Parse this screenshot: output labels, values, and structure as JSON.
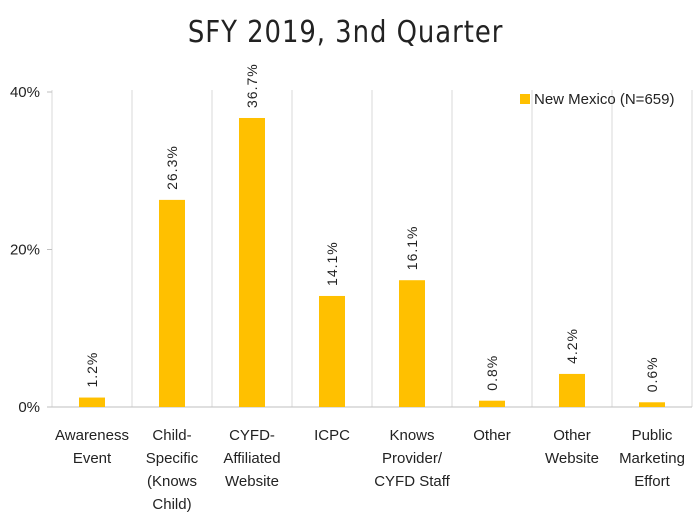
{
  "chart_data": {
    "type": "bar",
    "title": "SFY 2019, 3nd Quarter",
    "categories": [
      "Awareness\nEvent",
      "Child-\nSpecific\n(Knows\nChild)",
      "CYFD-\nAffiliated\nWebsite",
      "ICPC",
      "Knows\nProvider/\nCYFD Staff",
      "Other",
      "Other\nWebsite",
      "Public\nMarketing\nEffort"
    ],
    "series": [
      {
        "name": "New Mexico (N=659)",
        "color": "#ffc000",
        "values": [
          1.2,
          26.3,
          36.7,
          14.1,
          16.1,
          0.8,
          4.2,
          0.6
        ],
        "value_labels": [
          "1.2%",
          "26.3%",
          "36.7%",
          "14.1%",
          "16.1%",
          "0.8%",
          "4.2%",
          "0.6%"
        ]
      }
    ],
    "ylim": [
      0,
      40
    ],
    "yticks": [
      {
        "value": 0,
        "label": "0%"
      },
      {
        "value": 20,
        "label": "20%"
      },
      {
        "value": 40,
        "label": "40%"
      }
    ],
    "legend": "top-right"
  }
}
